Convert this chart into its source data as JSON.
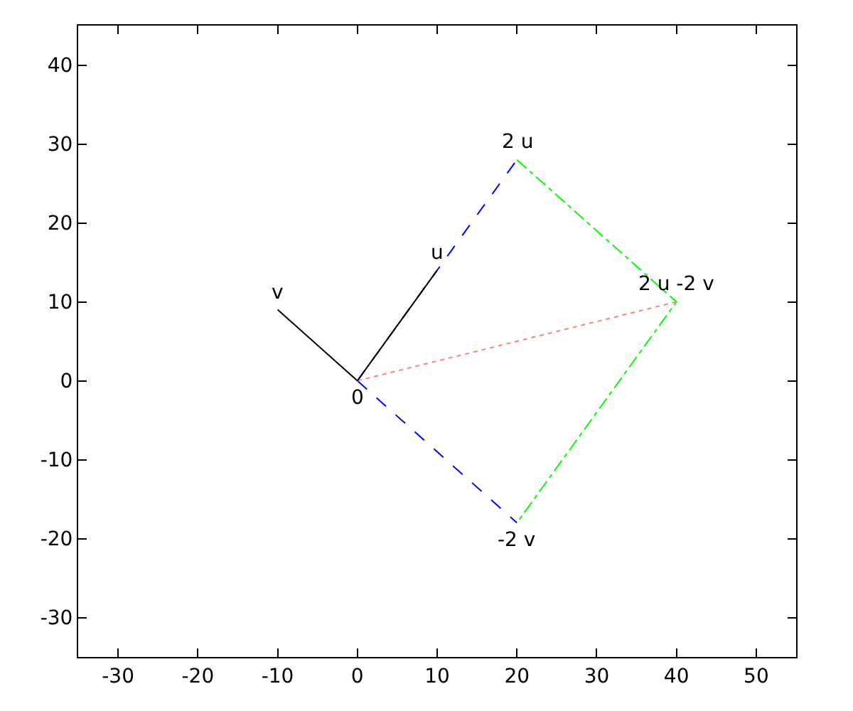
{
  "chart_data": {
    "type": "line",
    "xlim": [
      -35,
      55
    ],
    "xticks": [
      -30,
      -20,
      -10,
      0,
      10,
      20,
      30,
      40,
      50
    ],
    "ylim": [
      -35,
      45
    ],
    "yticks": [
      -30,
      -20,
      -10,
      0,
      10,
      20,
      30,
      40
    ],
    "series": [
      {
        "color": "#0000ff",
        "line_style": "dashed",
        "x": [
          0,
          20
        ],
        "values": [
          0,
          28
        ]
      },
      {
        "color": "#0000ff",
        "line_style": "dashed",
        "x": [
          0,
          20
        ],
        "values": [
          0,
          -18
        ]
      },
      {
        "color": "#00ff00",
        "line_style": "dashdot",
        "x": [
          20,
          40,
          20
        ],
        "values": [
          28,
          10,
          -18
        ]
      },
      {
        "color": "#ff8080",
        "line_style": "dotted",
        "x": [
          0,
          40
        ],
        "values": [
          0,
          10
        ]
      },
      {
        "color": "#000000",
        "line_style": "solid",
        "x": [
          0,
          10
        ],
        "values": [
          0,
          14
        ]
      },
      {
        "color": "#000000",
        "line_style": "solid",
        "x": [
          0,
          -10
        ],
        "values": [
          0,
          9
        ]
      }
    ],
    "annotations": [
      {
        "text": "0",
        "x": 0,
        "y": 0
      },
      {
        "text": "u",
        "x": 10,
        "y": 14
      },
      {
        "text": "v",
        "x": -10,
        "y": 9
      },
      {
        "text": "2 u",
        "x": 20,
        "y": 28
      },
      {
        "text": "2 u -2 v",
        "x": 40,
        "y": 10
      },
      {
        "text": "-2 v",
        "x": 20,
        "y": -18
      }
    ]
  }
}
